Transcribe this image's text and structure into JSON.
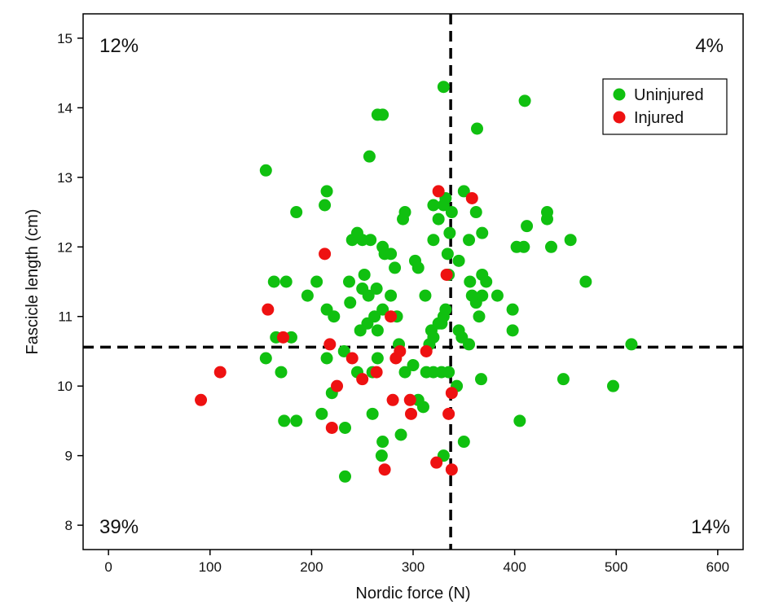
{
  "chart_data": {
    "type": "scatter",
    "xlabel": "Nordic force (N)",
    "ylabel": "Fascicle length (cm)",
    "xlim": [
      -25,
      625
    ],
    "ylim": [
      7.65,
      15.35
    ],
    "xticks": [
      0,
      100,
      200,
      300,
      400,
      500,
      600
    ],
    "yticks": [
      8,
      9,
      10,
      11,
      12,
      13,
      14,
      15
    ],
    "grid": false,
    "legend": {
      "position": "top-right",
      "entries": [
        "Uninjured",
        "Injured"
      ]
    },
    "reference_lines": {
      "x": 337,
      "y": 10.56,
      "style": "dashed"
    },
    "quadrant_labels": {
      "top_left": "12%",
      "top_right": "4%",
      "bottom_left": "39%",
      "bottom_right": "14%"
    },
    "series": [
      {
        "name": "Uninjured",
        "color": "#10c010",
        "points": [
          [
            155,
            13.1
          ],
          [
            213,
            12.6
          ],
          [
            215,
            12.8
          ],
          [
            185,
            12.5
          ],
          [
            163,
            11.5
          ],
          [
            175,
            11.5
          ],
          [
            196,
            11.3
          ],
          [
            205,
            11.5
          ],
          [
            215,
            11.1
          ],
          [
            222,
            11.0
          ],
          [
            165,
            10.7
          ],
          [
            180,
            10.7
          ],
          [
            155,
            10.4
          ],
          [
            170,
            10.2
          ],
          [
            215,
            10.4
          ],
          [
            220,
            9.9
          ],
          [
            173,
            9.5
          ],
          [
            185,
            9.5
          ],
          [
            210,
            9.6
          ],
          [
            233,
            9.4
          ],
          [
            233,
            8.7
          ],
          [
            232,
            10.5
          ],
          [
            245,
            10.2
          ],
          [
            260,
            10.2
          ],
          [
            265,
            10.4
          ],
          [
            255,
            10.9
          ],
          [
            265,
            10.8
          ],
          [
            248,
            10.8
          ],
          [
            262,
            11.0
          ],
          [
            250,
            11.4
          ],
          [
            256,
            11.3
          ],
          [
            264,
            11.4
          ],
          [
            270,
            11.1
          ],
          [
            278,
            11.3
          ],
          [
            284,
            11.0
          ],
          [
            286,
            10.6
          ],
          [
            237,
            11.5
          ],
          [
            252,
            11.6
          ],
          [
            238,
            11.2
          ],
          [
            240,
            12.1
          ],
          [
            245,
            12.2
          ],
          [
            250,
            12.1
          ],
          [
            258,
            12.1
          ],
          [
            270,
            12.0
          ],
          [
            272,
            11.9
          ],
          [
            278,
            11.9
          ],
          [
            282,
            11.7
          ],
          [
            257,
            13.3
          ],
          [
            265,
            13.9
          ],
          [
            270,
            13.9
          ],
          [
            290,
            12.4
          ],
          [
            292,
            12.5
          ],
          [
            302,
            11.8
          ],
          [
            305,
            11.7
          ],
          [
            312,
            11.3
          ],
          [
            292,
            10.2
          ],
          [
            300,
            10.3
          ],
          [
            316,
            10.6
          ],
          [
            318,
            10.8
          ],
          [
            320,
            10.7
          ],
          [
            325,
            10.9
          ],
          [
            328,
            10.9
          ],
          [
            330,
            11.0
          ],
          [
            332,
            11.1
          ],
          [
            328,
            10.2
          ],
          [
            313,
            10.2
          ],
          [
            320,
            10.2
          ],
          [
            310,
            9.7
          ],
          [
            288,
            9.3
          ],
          [
            269,
            9.0
          ],
          [
            270,
            9.2
          ],
          [
            260,
            9.6
          ],
          [
            305,
            9.8
          ],
          [
            335,
            10.2
          ],
          [
            343,
            10.0
          ],
          [
            330,
            9.0
          ],
          [
            350,
            9.2
          ],
          [
            335,
            11.6
          ],
          [
            334,
            11.9
          ],
          [
            336,
            12.2
          ],
          [
            338,
            12.5
          ],
          [
            320,
            12.6
          ],
          [
            325,
            12.4
          ],
          [
            330,
            12.6
          ],
          [
            332,
            12.7
          ],
          [
            320,
            12.1
          ],
          [
            330,
            14.3
          ],
          [
            345,
            11.8
          ],
          [
            350,
            12.8
          ],
          [
            355,
            12.1
          ],
          [
            358,
            11.3
          ],
          [
            356,
            11.5
          ],
          [
            362,
            11.2
          ],
          [
            365,
            11.0
          ],
          [
            368,
            11.3
          ],
          [
            368,
            11.6
          ],
          [
            372,
            11.5
          ],
          [
            383,
            11.3
          ],
          [
            362,
            12.5
          ],
          [
            368,
            12.2
          ],
          [
            363,
            13.7
          ],
          [
            345,
            10.8
          ],
          [
            348,
            10.7
          ],
          [
            355,
            10.6
          ],
          [
            367,
            10.1
          ],
          [
            398,
            11.1
          ],
          [
            398,
            10.8
          ],
          [
            402,
            12.0
          ],
          [
            409,
            12.0
          ],
          [
            412,
            12.3
          ],
          [
            410,
            14.1
          ],
          [
            432,
            12.4
          ],
          [
            432,
            12.5
          ],
          [
            436,
            12.0
          ],
          [
            455,
            12.1
          ],
          [
            470,
            11.5
          ],
          [
            448,
            10.1
          ],
          [
            405,
            9.5
          ],
          [
            497,
            10.0
          ],
          [
            515,
            10.6
          ]
        ]
      },
      {
        "name": "Injured",
        "color": "#ee1111",
        "points": [
          [
            91,
            9.8
          ],
          [
            110,
            10.2
          ],
          [
            157,
            11.1
          ],
          [
            172,
            10.7
          ],
          [
            213,
            11.9
          ],
          [
            218,
            10.6
          ],
          [
            220,
            9.4
          ],
          [
            225,
            10.0
          ],
          [
            240,
            10.4
          ],
          [
            250,
            10.1
          ],
          [
            264,
            10.2
          ],
          [
            272,
            8.8
          ],
          [
            278,
            11.0
          ],
          [
            280,
            9.8
          ],
          [
            283,
            10.4
          ],
          [
            287,
            10.5
          ],
          [
            297,
            9.8
          ],
          [
            298,
            9.6
          ],
          [
            313,
            10.5
          ],
          [
            323,
            8.9
          ],
          [
            325,
            12.8
          ],
          [
            333,
            11.6
          ],
          [
            335,
            9.6
          ],
          [
            338,
            9.9
          ],
          [
            338,
            8.8
          ],
          [
            358,
            12.7
          ]
        ]
      }
    ]
  }
}
